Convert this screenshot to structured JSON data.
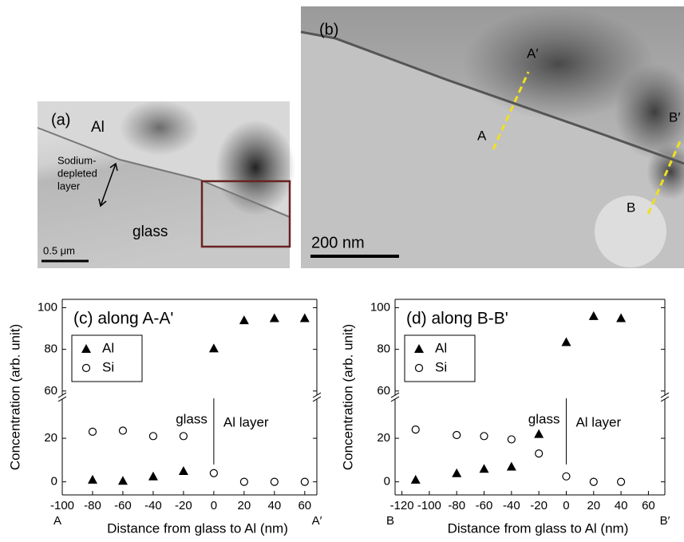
{
  "micrographs": {
    "a": {
      "panel": "(a)",
      "metal": "Al",
      "layer_label": [
        "Sodium-",
        "depleted",
        "layer"
      ],
      "substrate": "glass",
      "scale": "0.5 μm"
    },
    "b": {
      "panel": "(b)",
      "line1_start": "A",
      "line1_end": "A′",
      "line2_start": "B",
      "line2_end": "B′",
      "scale": "200 nm"
    }
  },
  "chart_data": [
    {
      "type": "scatter",
      "title": "(c) along A-A'",
      "x_label": "Distance from glass to Al (nm)",
      "y_label": "Concentration (arb. unit)",
      "x": [
        -80,
        -60,
        -40,
        -20,
        0,
        20,
        40,
        60
      ],
      "series": [
        {
          "name": "Al",
          "color": "#000000",
          "marker": "triangle",
          "values": [
            1,
            0.5,
            2.5,
            5,
            80.5,
            94,
            95,
            95
          ]
        },
        {
          "name": "Si",
          "color": "#000000",
          "marker": "circle",
          "values": [
            23,
            23.5,
            21,
            21,
            4,
            0,
            0,
            0
          ]
        }
      ],
      "xlim": [
        -100,
        68
      ],
      "xticks": [
        -100,
        -80,
        -60,
        -40,
        -20,
        0,
        20,
        40,
        60
      ],
      "ylim": [
        -6,
        104
      ],
      "ybreak": [
        38,
        58
      ],
      "yticks": [
        0,
        20,
        60,
        80,
        100
      ],
      "x_end_labels": [
        "A",
        "A′"
      ],
      "regions": [
        "glass",
        "Al layer"
      ],
      "boundary_x": 0,
      "legend": "upper-left"
    },
    {
      "type": "scatter",
      "title": "(d) along B-B'",
      "x_label": "Distance from glass to Al (nm)",
      "y_label": "Concentration (arb. unit)",
      "x": [
        -110,
        -80,
        -60,
        -40,
        -20,
        0,
        20,
        40
      ],
      "series": [
        {
          "name": "Al",
          "color": "#000000",
          "marker": "triangle",
          "values": [
            1,
            4,
            6,
            7,
            22,
            83.5,
            96,
            95
          ]
        },
        {
          "name": "Si",
          "color": "#000000",
          "marker": "circle",
          "values": [
            24,
            21.5,
            21,
            19.5,
            13,
            2.5,
            0,
            0
          ]
        }
      ],
      "xlim": [
        -125,
        72
      ],
      "xticks": [
        -120,
        -100,
        -80,
        -60,
        -40,
        -20,
        0,
        20,
        40,
        60
      ],
      "ylim": [
        -6,
        104
      ],
      "ybreak": [
        38,
        58
      ],
      "yticks": [
        0,
        20,
        60,
        80,
        100
      ],
      "x_end_labels": [
        "B",
        "B′"
      ],
      "regions": [
        "glass",
        "Al layer"
      ],
      "boundary_x": 0,
      "legend": "upper-left"
    }
  ]
}
